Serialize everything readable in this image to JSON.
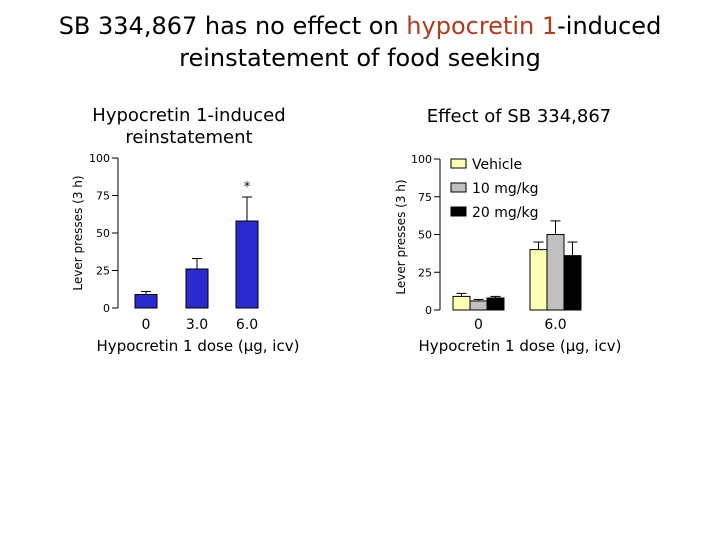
{
  "slide": {
    "title_part1": "SB 334,867 has no effect on ",
    "title_highlight": "hypocretin 1",
    "title_part2": "-induced",
    "title_line2": "reinstatement of food seeking",
    "highlight_color": "#b5391c"
  },
  "chart_data": [
    {
      "type": "bar",
      "title": "Hypocretin 1-induced reinstatement",
      "title_lines": [
        "Hypocretin 1-induced",
        "reinstatement"
      ],
      "xlabel": "Hypocretin 1 dose (µg, icv)",
      "ylabel": "Lever presses (3 h)",
      "ylim": [
        0,
        100
      ],
      "yticks": [
        "0",
        "25",
        "50",
        "75",
        "100"
      ],
      "categories": [
        "0",
        "3.0",
        "6.0"
      ],
      "values": [
        9,
        26,
        58
      ],
      "errors": [
        2,
        7,
        16
      ],
      "annotations": [
        {
          "category": "6.0",
          "text": "*"
        }
      ],
      "bar_color": "#2a2acf",
      "legend": false,
      "grid": false
    },
    {
      "type": "bar",
      "title": "Effect of SB 334,867",
      "xlabel": "Hypocretin 1 dose (µg, icv)",
      "ylabel": "Lever presses (3 h)",
      "ylim": [
        0,
        100
      ],
      "yticks": [
        "0",
        "25",
        "50",
        "75",
        "100"
      ],
      "categories": [
        "0",
        "6.0"
      ],
      "series": [
        {
          "name": "Vehicle",
          "values": [
            9,
            40
          ],
          "errors": [
            2,
            5
          ],
          "color": "#ffffb3"
        },
        {
          "name": "10 mg/kg",
          "values": [
            6,
            50
          ],
          "errors": [
            1,
            9
          ],
          "color": "#c0c0c0"
        },
        {
          "name": "20 mg/kg",
          "values": [
            8,
            36
          ],
          "errors": [
            1,
            9
          ],
          "color": "#000000"
        }
      ],
      "legend_position": "top-right",
      "grid": false
    }
  ]
}
